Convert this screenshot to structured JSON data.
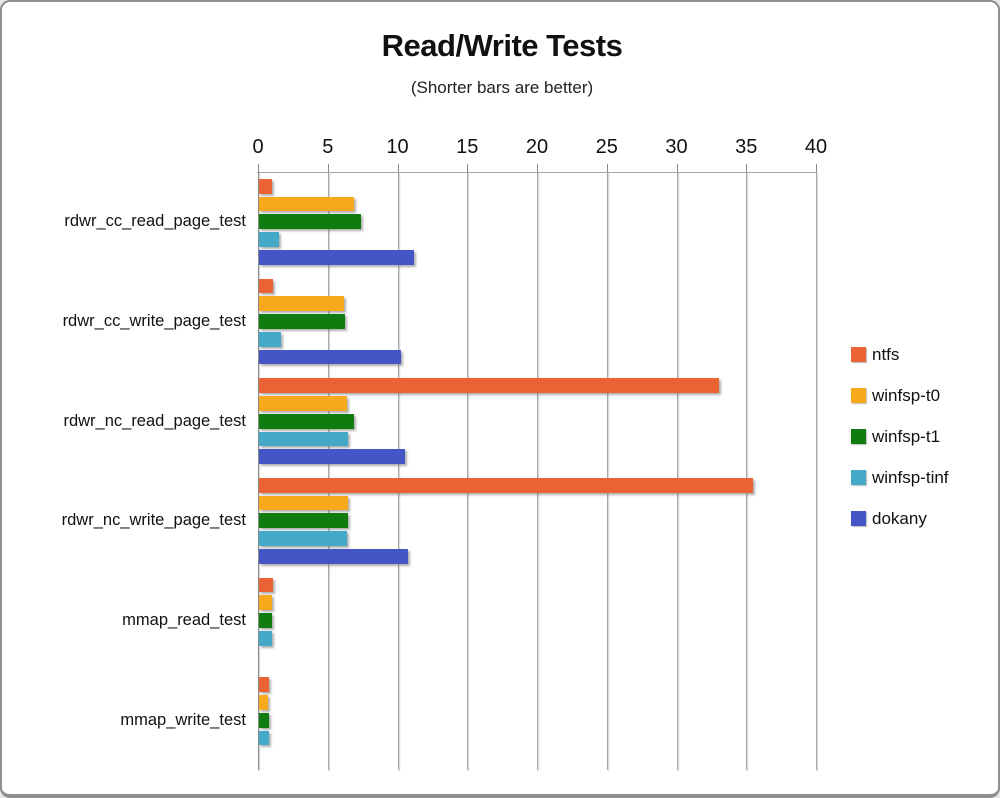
{
  "frame": {
    "background": "#ffffff",
    "border_color": "#8f8f8f",
    "gridline_color": "#a6a6a6",
    "axis_color": "#8a8a8a"
  },
  "chart_data": {
    "type": "bar",
    "orientation": "horizontal",
    "title": "Read/Write Tests",
    "subtitle": "(Shorter bars are better)",
    "xlabel": "",
    "ylabel": "",
    "xlim": [
      0,
      40
    ],
    "x_ticks": [
      0,
      5,
      10,
      15,
      20,
      25,
      30,
      35,
      40
    ],
    "grid": true,
    "legend_position": "right",
    "axis_position": "top",
    "categories": [
      "rdwr_cc_read_page_test",
      "rdwr_cc_write_page_test",
      "rdwr_nc_read_page_test",
      "rdwr_nc_write_page_test",
      "mmap_read_test",
      "mmap_write_test"
    ],
    "series": [
      {
        "name": "ntfs",
        "color": "#EB6332",
        "values": [
          0.9,
          1.0,
          33.0,
          35.4,
          1.0,
          0.7
        ]
      },
      {
        "name": "winfsp-t0",
        "color": "#F8A81C",
        "values": [
          6.8,
          6.1,
          6.3,
          6.4,
          0.95,
          0.65
        ]
      },
      {
        "name": "winfsp-t1",
        "color": "#107C10",
        "values": [
          7.3,
          6.2,
          6.8,
          6.4,
          0.9,
          0.7
        ]
      },
      {
        "name": "winfsp-tinf",
        "color": "#43A9C7",
        "values": [
          1.4,
          1.6,
          6.4,
          6.3,
          0.95,
          0.7
        ]
      },
      {
        "name": "dokany",
        "color": "#4456C6",
        "values": [
          11.1,
          10.2,
          10.5,
          10.7,
          0,
          0
        ]
      }
    ]
  }
}
